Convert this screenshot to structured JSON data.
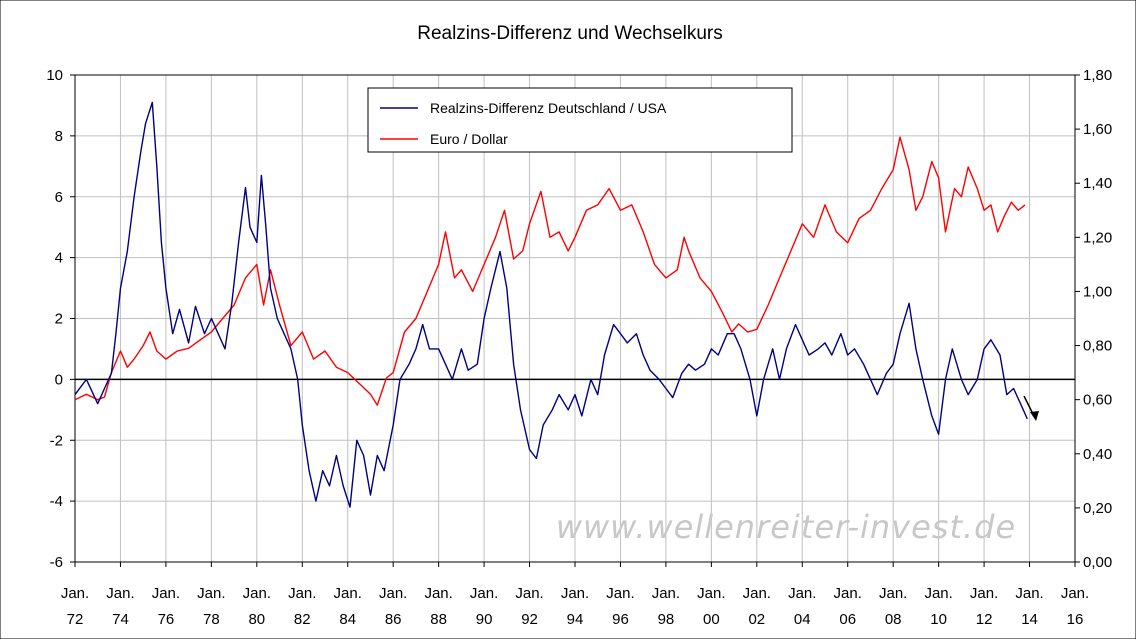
{
  "chart_data": {
    "type": "line",
    "title": "Realzins-Differenz und Wechselkurs",
    "watermark": "www.wellenreiter-invest.de",
    "x_axis": {
      "range": [
        1972,
        2016
      ],
      "ticks": [
        {
          "line1": "Jan.",
          "line2": "72",
          "year": 1972
        },
        {
          "line1": "Jan.",
          "line2": "74",
          "year": 1974
        },
        {
          "line1": "Jan.",
          "line2": "76",
          "year": 1976
        },
        {
          "line1": "Jan.",
          "line2": "78",
          "year": 1978
        },
        {
          "line1": "Jan.",
          "line2": "80",
          "year": 1980
        },
        {
          "line1": "Jan.",
          "line2": "82",
          "year": 1982
        },
        {
          "line1": "Jan.",
          "line2": "84",
          "year": 1984
        },
        {
          "line1": "Jan.",
          "line2": "86",
          "year": 1986
        },
        {
          "line1": "Jan.",
          "line2": "88",
          "year": 1988
        },
        {
          "line1": "Jan.",
          "line2": "90",
          "year": 1990
        },
        {
          "line1": "Jan.",
          "line2": "92",
          "year": 1992
        },
        {
          "line1": "Jan.",
          "line2": "94",
          "year": 1994
        },
        {
          "line1": "Jan.",
          "line2": "96",
          "year": 1996
        },
        {
          "line1": "Jan.",
          "line2": "98",
          "year": 1998
        },
        {
          "line1": "Jan.",
          "line2": "00",
          "year": 2000
        },
        {
          "line1": "Jan.",
          "line2": "02",
          "year": 2002
        },
        {
          "line1": "Jan.",
          "line2": "04",
          "year": 2004
        },
        {
          "line1": "Jan.",
          "line2": "06",
          "year": 2006
        },
        {
          "line1": "Jan.",
          "line2": "08",
          "year": 2008
        },
        {
          "line1": "Jan.",
          "line2": "10",
          "year": 2010
        },
        {
          "line1": "Jan.",
          "line2": "12",
          "year": 2012
        },
        {
          "line1": "Jan.",
          "line2": "14",
          "year": 2014
        },
        {
          "line1": "Jan.",
          "line2": "16",
          "year": 2016
        }
      ]
    },
    "y_left": {
      "range": [
        -6,
        10
      ],
      "ticks": [
        {
          "label": "10",
          "value": 10
        },
        {
          "label": "8",
          "value": 8
        },
        {
          "label": "6",
          "value": 6
        },
        {
          "label": "4",
          "value": 4
        },
        {
          "label": "2",
          "value": 2
        },
        {
          "label": "0",
          "value": 0
        },
        {
          "label": "-2",
          "value": -2
        },
        {
          "label": "-4",
          "value": -4
        },
        {
          "label": "-6",
          "value": -6
        }
      ]
    },
    "y_right": {
      "range": [
        0,
        1.8
      ],
      "ticks": [
        {
          "label": "1,80",
          "value": 1.8
        },
        {
          "label": "1,60",
          "value": 1.6
        },
        {
          "label": "1,40",
          "value": 1.4
        },
        {
          "label": "1,20",
          "value": 1.2
        },
        {
          "label": "1,00",
          "value": 1.0
        },
        {
          "label": "0,80",
          "value": 0.8
        },
        {
          "label": "0,60",
          "value": 0.6
        },
        {
          "label": "0,40",
          "value": 0.4
        },
        {
          "label": "0,20",
          "value": 0.2
        },
        {
          "label": "0,00",
          "value": 0.0
        }
      ]
    },
    "grid": true,
    "legend_position": "top-center",
    "series": [
      {
        "name": "Realzins-Differenz Deutschland / USA",
        "axis": "left",
        "color": "#000080",
        "points": [
          [
            1972.0,
            -0.5
          ],
          [
            1972.5,
            0.0
          ],
          [
            1973.0,
            -0.8
          ],
          [
            1973.3,
            -0.3
          ],
          [
            1973.6,
            0.2
          ],
          [
            1973.8,
            1.5
          ],
          [
            1974.0,
            3.0
          ],
          [
            1974.3,
            4.2
          ],
          [
            1974.6,
            6.0
          ],
          [
            1974.9,
            7.5
          ],
          [
            1975.1,
            8.4
          ],
          [
            1975.4,
            9.1
          ],
          [
            1975.6,
            7.0
          ],
          [
            1975.8,
            4.5
          ],
          [
            1976.0,
            3.0
          ],
          [
            1976.3,
            1.5
          ],
          [
            1976.6,
            2.3
          ],
          [
            1977.0,
            1.2
          ],
          [
            1977.3,
            2.4
          ],
          [
            1977.7,
            1.5
          ],
          [
            1978.0,
            2.0
          ],
          [
            1978.3,
            1.5
          ],
          [
            1978.6,
            1.0
          ],
          [
            1978.9,
            2.5
          ],
          [
            1979.2,
            4.5
          ],
          [
            1979.5,
            6.3
          ],
          [
            1979.7,
            5.0
          ],
          [
            1980.0,
            4.5
          ],
          [
            1980.2,
            6.7
          ],
          [
            1980.4,
            5.0
          ],
          [
            1980.6,
            3.0
          ],
          [
            1980.9,
            2.0
          ],
          [
            1981.2,
            1.5
          ],
          [
            1981.5,
            1.0
          ],
          [
            1981.8,
            0.0
          ],
          [
            1982.0,
            -1.5
          ],
          [
            1982.3,
            -3.0
          ],
          [
            1982.6,
            -4.0
          ],
          [
            1982.9,
            -3.0
          ],
          [
            1983.2,
            -3.5
          ],
          [
            1983.5,
            -2.5
          ],
          [
            1983.8,
            -3.5
          ],
          [
            1984.1,
            -4.2
          ],
          [
            1984.4,
            -2.0
          ],
          [
            1984.7,
            -2.5
          ],
          [
            1985.0,
            -3.8
          ],
          [
            1985.3,
            -2.5
          ],
          [
            1985.6,
            -3.0
          ],
          [
            1986.0,
            -1.5
          ],
          [
            1986.3,
            0.0
          ],
          [
            1986.7,
            0.5
          ],
          [
            1987.0,
            1.0
          ],
          [
            1987.3,
            1.8
          ],
          [
            1987.6,
            1.0
          ],
          [
            1988.0,
            1.0
          ],
          [
            1988.3,
            0.5
          ],
          [
            1988.6,
            0.0
          ],
          [
            1989.0,
            1.0
          ],
          [
            1989.3,
            0.3
          ],
          [
            1989.7,
            0.5
          ],
          [
            1990.0,
            2.0
          ],
          [
            1990.3,
            3.0
          ],
          [
            1990.7,
            4.2
          ],
          [
            1991.0,
            3.0
          ],
          [
            1991.3,
            0.5
          ],
          [
            1991.6,
            -1.0
          ],
          [
            1992.0,
            -2.3
          ],
          [
            1992.3,
            -2.6
          ],
          [
            1992.6,
            -1.5
          ],
          [
            1993.0,
            -1.0
          ],
          [
            1993.3,
            -0.5
          ],
          [
            1993.7,
            -1.0
          ],
          [
            1994.0,
            -0.5
          ],
          [
            1994.3,
            -1.2
          ],
          [
            1994.7,
            0.0
          ],
          [
            1995.0,
            -0.5
          ],
          [
            1995.3,
            0.8
          ],
          [
            1995.7,
            1.8
          ],
          [
            1996.0,
            1.5
          ],
          [
            1996.3,
            1.2
          ],
          [
            1996.7,
            1.5
          ],
          [
            1997.0,
            0.8
          ],
          [
            1997.3,
            0.3
          ],
          [
            1997.7,
            0.0
          ],
          [
            1998.0,
            -0.3
          ],
          [
            1998.3,
            -0.6
          ],
          [
            1998.7,
            0.2
          ],
          [
            1999.0,
            0.5
          ],
          [
            1999.3,
            0.3
          ],
          [
            1999.7,
            0.5
          ],
          [
            2000.0,
            1.0
          ],
          [
            2000.3,
            0.8
          ],
          [
            2000.7,
            1.5
          ],
          [
            2001.0,
            1.5
          ],
          [
            2001.3,
            1.0
          ],
          [
            2001.7,
            0.0
          ],
          [
            2002.0,
            -1.2
          ],
          [
            2002.3,
            0.0
          ],
          [
            2002.7,
            1.0
          ],
          [
            2003.0,
            0.0
          ],
          [
            2003.3,
            1.0
          ],
          [
            2003.7,
            1.8
          ],
          [
            2004.0,
            1.3
          ],
          [
            2004.3,
            0.8
          ],
          [
            2004.7,
            1.0
          ],
          [
            2005.0,
            1.2
          ],
          [
            2005.3,
            0.8
          ],
          [
            2005.7,
            1.5
          ],
          [
            2006.0,
            0.8
          ],
          [
            2006.3,
            1.0
          ],
          [
            2006.7,
            0.5
          ],
          [
            2007.0,
            0.0
          ],
          [
            2007.3,
            -0.5
          ],
          [
            2007.7,
            0.2
          ],
          [
            2008.0,
            0.5
          ],
          [
            2008.3,
            1.5
          ],
          [
            2008.7,
            2.5
          ],
          [
            2009.0,
            1.0
          ],
          [
            2009.3,
            0.0
          ],
          [
            2009.7,
            -1.2
          ],
          [
            2010.0,
            -1.8
          ],
          [
            2010.3,
            0.0
          ],
          [
            2010.6,
            1.0
          ],
          [
            2011.0,
            0.0
          ],
          [
            2011.3,
            -0.5
          ],
          [
            2011.7,
            0.0
          ],
          [
            2012.0,
            1.0
          ],
          [
            2012.3,
            1.3
          ],
          [
            2012.7,
            0.8
          ],
          [
            2013.0,
            -0.5
          ],
          [
            2013.3,
            -0.3
          ],
          [
            2013.6,
            -0.8
          ],
          [
            2013.9,
            -1.3
          ]
        ]
      },
      {
        "name": "Euro / Dollar",
        "axis": "right",
        "color": "#ff0000",
        "points": [
          [
            1972.0,
            0.6
          ],
          [
            1972.5,
            0.62
          ],
          [
            1973.0,
            0.6
          ],
          [
            1973.3,
            0.61
          ],
          [
            1973.6,
            0.7
          ],
          [
            1974.0,
            0.78
          ],
          [
            1974.3,
            0.72
          ],
          [
            1974.6,
            0.75
          ],
          [
            1975.0,
            0.8
          ],
          [
            1975.3,
            0.85
          ],
          [
            1975.6,
            0.78
          ],
          [
            1976.0,
            0.75
          ],
          [
            1976.5,
            0.78
          ],
          [
            1977.0,
            0.79
          ],
          [
            1977.5,
            0.82
          ],
          [
            1978.0,
            0.85
          ],
          [
            1978.5,
            0.9
          ],
          [
            1979.0,
            0.95
          ],
          [
            1979.5,
            1.05
          ],
          [
            1980.0,
            1.1
          ],
          [
            1980.3,
            0.95
          ],
          [
            1980.6,
            1.08
          ],
          [
            1981.0,
            0.95
          ],
          [
            1981.5,
            0.8
          ],
          [
            1982.0,
            0.85
          ],
          [
            1982.5,
            0.75
          ],
          [
            1983.0,
            0.78
          ],
          [
            1983.5,
            0.72
          ],
          [
            1984.0,
            0.7
          ],
          [
            1984.5,
            0.66
          ],
          [
            1985.0,
            0.62
          ],
          [
            1985.3,
            0.58
          ],
          [
            1985.7,
            0.68
          ],
          [
            1986.0,
            0.7
          ],
          [
            1986.5,
            0.85
          ],
          [
            1987.0,
            0.9
          ],
          [
            1987.5,
            1.0
          ],
          [
            1988.0,
            1.1
          ],
          [
            1988.3,
            1.22
          ],
          [
            1988.7,
            1.05
          ],
          [
            1989.0,
            1.08
          ],
          [
            1989.5,
            1.0
          ],
          [
            1990.0,
            1.1
          ],
          [
            1990.5,
            1.2
          ],
          [
            1990.9,
            1.3
          ],
          [
            1991.3,
            1.12
          ],
          [
            1991.7,
            1.15
          ],
          [
            1992.0,
            1.25
          ],
          [
            1992.5,
            1.37
          ],
          [
            1992.9,
            1.2
          ],
          [
            1993.3,
            1.22
          ],
          [
            1993.7,
            1.15
          ],
          [
            1994.0,
            1.2
          ],
          [
            1994.5,
            1.3
          ],
          [
            1995.0,
            1.32
          ],
          [
            1995.5,
            1.38
          ],
          [
            1996.0,
            1.3
          ],
          [
            1996.5,
            1.32
          ],
          [
            1997.0,
            1.22
          ],
          [
            1997.5,
            1.1
          ],
          [
            1998.0,
            1.05
          ],
          [
            1998.5,
            1.08
          ],
          [
            1998.8,
            1.2
          ],
          [
            1999.0,
            1.15
          ],
          [
            1999.5,
            1.05
          ],
          [
            2000.0,
            1.0
          ],
          [
            2000.5,
            0.92
          ],
          [
            2000.9,
            0.85
          ],
          [
            2001.2,
            0.88
          ],
          [
            2001.6,
            0.85
          ],
          [
            2002.0,
            0.86
          ],
          [
            2002.5,
            0.95
          ],
          [
            2003.0,
            1.05
          ],
          [
            2003.5,
            1.15
          ],
          [
            2004.0,
            1.25
          ],
          [
            2004.5,
            1.2
          ],
          [
            2005.0,
            1.32
          ],
          [
            2005.5,
            1.22
          ],
          [
            2006.0,
            1.18
          ],
          [
            2006.5,
            1.27
          ],
          [
            2007.0,
            1.3
          ],
          [
            2007.5,
            1.38
          ],
          [
            2008.0,
            1.45
          ],
          [
            2008.3,
            1.57
          ],
          [
            2008.7,
            1.45
          ],
          [
            2009.0,
            1.3
          ],
          [
            2009.3,
            1.35
          ],
          [
            2009.7,
            1.48
          ],
          [
            2010.0,
            1.42
          ],
          [
            2010.3,
            1.22
          ],
          [
            2010.7,
            1.38
          ],
          [
            2011.0,
            1.35
          ],
          [
            2011.3,
            1.46
          ],
          [
            2011.7,
            1.38
          ],
          [
            2012.0,
            1.3
          ],
          [
            2012.3,
            1.32
          ],
          [
            2012.6,
            1.22
          ],
          [
            2012.9,
            1.28
          ],
          [
            2013.2,
            1.33
          ],
          [
            2013.5,
            1.3
          ],
          [
            2013.8,
            1.32
          ]
        ]
      }
    ]
  },
  "colors": {
    "grid": "#c0c0c0",
    "axis": "#000000",
    "zero_line": "#000000",
    "arrow": "#000000"
  }
}
